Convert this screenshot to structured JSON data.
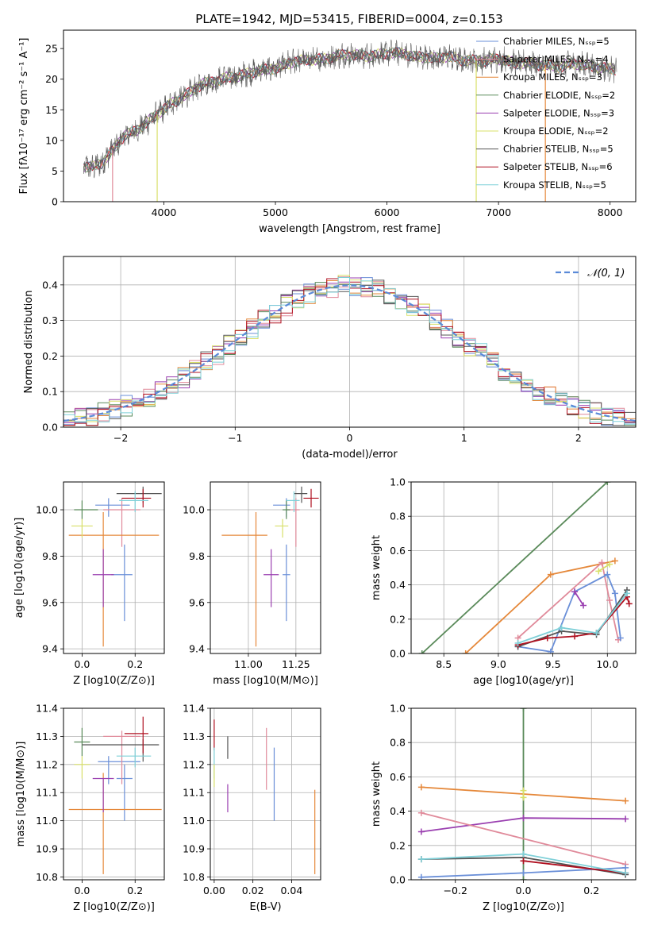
{
  "figure": {
    "title": "PLATE=1942, MJD=53415, FIBERID=0004, z=0.153"
  },
  "colors": {
    "c1": "#6a8fd8",
    "c2": "#e08a9a",
    "c3": "#e5883a",
    "c4": "#5a8a5a",
    "c5": "#9a3fb0",
    "c6": "#d8e06a",
    "c7": "#555555",
    "c8": "#b01020",
    "c9": "#7fd0d8"
  },
  "chart_data": [
    {
      "id": "spectrum",
      "type": "line",
      "xlabel": "wavelength [Angstrom, rest frame]",
      "ylabel": "Flux [fλ10⁻¹⁷ erg cm⁻² s⁻¹ A⁻¹]",
      "xlim": [
        3100,
        8230
      ],
      "ylim": [
        0,
        28
      ],
      "xticks": [
        4000,
        5000,
        6000,
        7000,
        8000
      ],
      "yticks": [
        0,
        5,
        10,
        15,
        20,
        25
      ],
      "legend_position": "top-right",
      "series": [
        {
          "name": "Chabrier MILES, N_SSP=5",
          "color": "#6a8fd8"
        },
        {
          "name": "Salpeter MILES, N_SSP=4",
          "color": "#e08a9a"
        },
        {
          "name": "Kroupa MILES, N_SSP=3",
          "color": "#e5883a"
        },
        {
          "name": "Chabrier ELODIE, N_SSP=2",
          "color": "#5a8a5a"
        },
        {
          "name": "Salpeter ELODIE, N_SSP=3",
          "color": "#9a3fb0"
        },
        {
          "name": "Kroupa ELODIE, N_SSP=2",
          "color": "#d8e06a"
        },
        {
          "name": "Chabrier STELIB, N_SSP=5",
          "color": "#555555"
        },
        {
          "name": "Salpeter STELIB, N_SSP=6",
          "color": "#b01020"
        },
        {
          "name": "Kroupa STELIB, N_SSP=5",
          "color": "#7fd0d8"
        }
      ],
      "x": [
        3280,
        3350,
        3450,
        3550,
        3650,
        3750,
        3850,
        3950,
        4050,
        4150,
        4250,
        4350,
        4450,
        4550,
        4650,
        4750,
        4850,
        4950,
        5050,
        5150,
        5250,
        5350,
        5450,
        5550,
        5650,
        5750,
        5850,
        5950,
        6050,
        6150,
        6250,
        6350,
        6450,
        6550,
        6650,
        6750,
        6850,
        6950,
        7050,
        7150,
        7250,
        7350,
        7450,
        7550,
        7650,
        7750,
        7850,
        7950,
        8050
      ],
      "y": [
        5.8,
        5.6,
        6.4,
        8.6,
        10.9,
        11.5,
        13.0,
        14.4,
        15.8,
        16.9,
        18.0,
        19.3,
        19.6,
        20.2,
        20.4,
        20.9,
        21.4,
        21.6,
        22.0,
        22.8,
        23.1,
        23.2,
        23.3,
        23.8,
        24.0,
        23.9,
        23.7,
        24.1,
        24.3,
        24.2,
        23.6,
        23.6,
        23.4,
        23.8,
        23.1,
        23.1,
        22.9,
        23.3,
        23.2,
        22.5,
        22.7,
        22.4,
        22.2,
        22.0,
        22.6,
        22.3,
        22.1,
        21.8,
        21.6
      ]
    },
    {
      "id": "residuals",
      "type": "line",
      "xlabel": "(data-model)/error",
      "ylabel": "Normed distribution",
      "xlim": [
        -2.5,
        2.5
      ],
      "ylim": [
        0,
        0.48
      ],
      "xticks": [
        -2,
        -1,
        0,
        1,
        2
      ],
      "yticks": [
        0.0,
        0.1,
        0.2,
        0.3,
        0.4
      ],
      "legend": [
        "𝒩(0, 1)"
      ],
      "legend_position": "top-right",
      "series": [
        {
          "name": "𝒩(0, 1)",
          "color": "#5a8ad8",
          "style": "dashed",
          "mean": 0,
          "sigma": 1
        }
      ]
    },
    {
      "id": "z-age",
      "type": "scatter",
      "xlabel": "Z [log10(Z/Z⊙)]",
      "ylabel": "age [log10(age/yr)]",
      "xlim": [
        -0.07,
        0.31
      ],
      "ylim": [
        9.38,
        10.12
      ],
      "xticks": [
        0.0,
        0.2
      ],
      "yticks": [
        9.4,
        9.6,
        9.8,
        10.0
      ],
      "points": [
        {
          "x": 0.1,
          "y": 10.02,
          "xerr": [
            0.05,
            0.08
          ],
          "yerr": [
            0.05,
            0.03
          ],
          "color": "#6a8fd8"
        },
        {
          "x": 0.16,
          "y": 9.72,
          "xerr": [
            0.05,
            0.03
          ],
          "yerr": [
            0.2,
            0.13
          ],
          "color": "#6a8fd8"
        },
        {
          "x": 0.15,
          "y": 10.0,
          "xerr": [
            0.07,
            0.07
          ],
          "yerr": [
            0.16,
            0.05
          ],
          "color": "#e08a9a"
        },
        {
          "x": 0.08,
          "y": 9.89,
          "xerr": [
            0.13,
            0.21
          ],
          "yerr": [
            0.48,
            0.1
          ],
          "color": "#e5883a"
        },
        {
          "x": 0.0,
          "y": 10.0,
          "xerr": [
            0.03,
            0.06
          ],
          "yerr": [
            0.04,
            0.04
          ],
          "color": "#5a8a5a"
        },
        {
          "x": 0.08,
          "y": 9.72,
          "xerr": [
            0.04,
            0.04
          ],
          "yerr": [
            0.14,
            0.11
          ],
          "color": "#9a3fb0"
        },
        {
          "x": 0.0,
          "y": 9.93,
          "xerr": [
            0.04,
            0.04
          ],
          "yerr": [
            0.05,
            0.03
          ],
          "color": "#d8e06a"
        },
        {
          "x": 0.23,
          "y": 10.07,
          "xerr": [
            0.1,
            0.07
          ],
          "yerr": [
            0.04,
            0.03
          ],
          "color": "#555555"
        },
        {
          "x": 0.23,
          "y": 10.05,
          "xerr": [
            0.08,
            0.03
          ],
          "yerr": [
            0.04,
            0.04
          ],
          "color": "#b01020"
        },
        {
          "x": 0.2,
          "y": 10.04,
          "xerr": [
            0.06,
            0.05
          ],
          "yerr": [
            0.05,
            0.04
          ],
          "color": "#7fd0d8"
        }
      ]
    },
    {
      "id": "mass-age",
      "type": "scatter",
      "xlabel": "mass [log10(M/M⊙)]",
      "ylabel": "",
      "xlim": [
        10.8,
        11.38
      ],
      "ylim": [
        9.38,
        10.12
      ],
      "xticks": [
        11.0,
        11.25
      ],
      "yticks": [
        9.4,
        9.6,
        9.8,
        10.0
      ],
      "points": [
        {
          "x": 11.2,
          "y": 10.02,
          "xerr": [
            0.07,
            0.02
          ],
          "yerr": [
            0.05,
            0.03
          ],
          "color": "#6a8fd8"
        },
        {
          "x": 11.2,
          "y": 9.72,
          "xerr": [
            0.02,
            0.02
          ],
          "yerr": [
            0.2,
            0.13
          ],
          "color": "#6a8fd8"
        },
        {
          "x": 11.25,
          "y": 10.0,
          "xerr": [
            0.05,
            0.02
          ],
          "yerr": [
            0.16,
            0.05
          ],
          "color": "#e08a9a"
        },
        {
          "x": 11.04,
          "y": 9.89,
          "xerr": [
            0.18,
            0.06
          ],
          "yerr": [
            0.48,
            0.1
          ],
          "color": "#e5883a"
        },
        {
          "x": 11.2,
          "y": 10.0,
          "xerr": [
            0.02,
            0.02
          ],
          "yerr": [
            0.04,
            0.04
          ],
          "color": "#5a8a5a"
        },
        {
          "x": 11.12,
          "y": 9.72,
          "xerr": [
            0.04,
            0.04
          ],
          "yerr": [
            0.14,
            0.11
          ],
          "color": "#9a3fb0"
        },
        {
          "x": 11.18,
          "y": 9.93,
          "xerr": [
            0.04,
            0.03
          ],
          "yerr": [
            0.05,
            0.03
          ],
          "color": "#d8e06a"
        },
        {
          "x": 11.28,
          "y": 10.07,
          "xerr": [
            0.04,
            0.03
          ],
          "yerr": [
            0.04,
            0.03
          ],
          "color": "#555555"
        },
        {
          "x": 11.33,
          "y": 10.05,
          "xerr": [
            0.04,
            0.04
          ],
          "yerr": [
            0.04,
            0.04
          ],
          "color": "#b01020"
        },
        {
          "x": 11.24,
          "y": 10.04,
          "xerr": [
            0.04,
            0.03
          ],
          "yerr": [
            0.05,
            0.04
          ],
          "color": "#7fd0d8"
        }
      ]
    },
    {
      "id": "age-weight",
      "type": "line",
      "xlabel": "age [log10(age/yr)]",
      "ylabel": "mass weight",
      "xlim": [
        8.2,
        10.26
      ],
      "ylim": [
        0,
        1.0
      ],
      "xticks": [
        8.5,
        9.0,
        9.5,
        10.0
      ],
      "yticks": [
        0.0,
        0.2,
        0.4,
        0.6,
        0.8,
        1.0
      ],
      "series": [
        {
          "color": "#5a8a5a",
          "x": [
            8.3,
            10.0
          ],
          "y": [
            0.0,
            1.0
          ]
        },
        {
          "color": "#e5883a",
          "x": [
            8.7,
            9.48,
            10.07
          ],
          "y": [
            0.0,
            0.46,
            0.54
          ]
        },
        {
          "color": "#e08a9a",
          "x": [
            9.18,
            9.95,
            10.02,
            10.1
          ],
          "y": [
            0.09,
            0.53,
            0.31,
            0.08
          ]
        },
        {
          "color": "#6a8fd8",
          "x": [
            9.18,
            9.48,
            9.7,
            10.0,
            10.07,
            10.12
          ],
          "y": [
            0.04,
            0.01,
            0.36,
            0.46,
            0.35,
            0.09
          ]
        },
        {
          "color": "#9a3fb0",
          "x": [
            9.7,
            9.78
          ],
          "y": [
            0.36,
            0.28
          ]
        },
        {
          "color": "#d8e06a",
          "x": [
            9.92,
            10.02
          ],
          "y": [
            0.48,
            0.52
          ]
        },
        {
          "color": "#555555",
          "x": [
            9.18,
            9.58,
            9.9,
            10.18
          ],
          "y": [
            0.04,
            0.13,
            0.11,
            0.37
          ]
        },
        {
          "color": "#b01020",
          "x": [
            9.18,
            9.45,
            9.7,
            9.9,
            10.18,
            10.2
          ],
          "y": [
            0.05,
            0.09,
            0.1,
            0.12,
            0.33,
            0.29
          ]
        },
        {
          "color": "#7fd0d8",
          "x": [
            9.18,
            9.58,
            9.9,
            10.18
          ],
          "y": [
            0.06,
            0.15,
            0.12,
            0.35
          ]
        }
      ]
    },
    {
      "id": "z-mass",
      "type": "scatter",
      "xlabel": "Z [log10(Z/Z⊙)]",
      "ylabel": "mass [log10(M/M⊙)]",
      "xlim": [
        -0.07,
        0.31
      ],
      "ylim": [
        10.79,
        11.4
      ],
      "xticks": [
        0.0,
        0.2
      ],
      "yticks": [
        10.8,
        10.9,
        11.0,
        11.1,
        11.2,
        11.3,
        11.4
      ],
      "points": [
        {
          "x": 0.1,
          "y": 11.21,
          "xerr": [
            0.04,
            0.12
          ],
          "yerr": [
            0.08,
            0.02
          ],
          "color": "#6a8fd8"
        },
        {
          "x": 0.16,
          "y": 11.15,
          "xerr": [
            0.03,
            0.03
          ],
          "yerr": [
            0.15,
            0.05
          ],
          "color": "#6a8fd8"
        },
        {
          "x": 0.15,
          "y": 11.3,
          "xerr": [
            0.07,
            0.07
          ],
          "yerr": [
            0.17,
            0.02
          ],
          "color": "#e08a9a"
        },
        {
          "x": 0.08,
          "y": 11.04,
          "xerr": [
            0.13,
            0.22
          ],
          "yerr": [
            0.23,
            0.13
          ],
          "color": "#e5883a"
        },
        {
          "x": 0.0,
          "y": 11.28,
          "xerr": [
            0.03,
            0.03
          ],
          "yerr": [
            0.05,
            0.05
          ],
          "color": "#5a8a5a"
        },
        {
          "x": 0.08,
          "y": 11.15,
          "xerr": [
            0.04,
            0.04
          ],
          "yerr": [
            0.12,
            0.0
          ],
          "color": "#9a3fb0"
        },
        {
          "x": 0.0,
          "y": 11.2,
          "xerr": [
            0.03,
            0.03
          ],
          "yerr": [
            0.05,
            0.03
          ],
          "color": "#d8e06a"
        },
        {
          "x": 0.23,
          "y": 11.27,
          "xerr": [
            0.23,
            0.06
          ],
          "yerr": [
            0.06,
            0.02
          ],
          "color": "#555555"
        },
        {
          "x": 0.23,
          "y": 11.31,
          "xerr": [
            0.07,
            0.02
          ],
          "yerr": [
            0.07,
            0.06
          ],
          "color": "#b01020"
        },
        {
          "x": 0.2,
          "y": 11.23,
          "xerr": [
            0.07,
            0.06
          ],
          "yerr": [
            0.04,
            0.03
          ],
          "color": "#7fd0d8"
        }
      ]
    },
    {
      "id": "ebv-mass",
      "type": "scatter",
      "xlabel": "E(B-V)",
      "ylabel": "",
      "xlim": [
        -0.002,
        0.055
      ],
      "ylim": [
        10.79,
        11.4
      ],
      "xticks": [
        0.0,
        0.02,
        0.04
      ],
      "yticks": [
        10.8,
        10.9,
        11.0,
        11.1,
        11.2,
        11.3,
        11.4
      ],
      "points": [
        {
          "x": 0.0,
          "y": 11.3,
          "yerr": [
            0.05,
            0.06
          ],
          "color": "#b01020"
        },
        {
          "x": 0.0,
          "y": 11.21,
          "yerr": [
            0.06,
            0.05
          ],
          "color": "#7fd0d8"
        },
        {
          "x": 0.0,
          "y": 11.15,
          "yerr": [
            0.03,
            0.05
          ],
          "color": "#d8e06a"
        },
        {
          "x": 0.007,
          "y": 11.26,
          "yerr": [
            0.04,
            0.04
          ],
          "color": "#555555"
        },
        {
          "x": 0.007,
          "y": 11.1,
          "yerr": [
            0.07,
            0.03
          ],
          "color": "#9a3fb0"
        },
        {
          "x": 0.027,
          "y": 11.2,
          "yerr": [
            0.09,
            0.13
          ],
          "color": "#e08a9a"
        },
        {
          "x": 0.031,
          "y": 11.11,
          "yerr": [
            0.11,
            0.15
          ],
          "color": "#6a8fd8"
        },
        {
          "x": 0.052,
          "y": 10.96,
          "yerr": [
            0.15,
            0.15
          ],
          "color": "#e5883a"
        }
      ]
    },
    {
      "id": "z-weight",
      "type": "line",
      "xlabel": "Z [log10(Z/Z⊙)]",
      "ylabel": "mass weight",
      "xlim": [
        -0.33,
        0.33
      ],
      "ylim": [
        0,
        1.0
      ],
      "xticks": [
        -0.2,
        0.0,
        0.2
      ],
      "yticks": [
        0.0,
        0.2,
        0.4,
        0.6,
        0.8,
        1.0
      ],
      "series": [
        {
          "color": "#5a8a5a",
          "x": [
            0.0,
            0.0
          ],
          "y": [
            0.0,
            1.0
          ]
        },
        {
          "color": "#e5883a",
          "x": [
            -0.3,
            0.3
          ],
          "y": [
            0.54,
            0.46
          ]
        },
        {
          "color": "#d8e06a",
          "x": [
            0.0,
            0.0
          ],
          "y": [
            0.48,
            0.52
          ]
        },
        {
          "color": "#9a3fb0",
          "x": [
            -0.3,
            0.0,
            0.3
          ],
          "y": [
            0.28,
            0.36,
            0.355
          ]
        },
        {
          "color": "#e08a9a",
          "x": [
            -0.3,
            0.3
          ],
          "y": [
            0.39,
            0.09
          ]
        },
        {
          "color": "#6a8fd8",
          "x": [
            -0.3,
            0.0,
            0.3
          ],
          "y": [
            0.015,
            0.04,
            0.07
          ]
        },
        {
          "color": "#555555",
          "x": [
            -0.3,
            0.0,
            0.3
          ],
          "y": [
            0.12,
            0.13,
            0.03
          ]
        },
        {
          "color": "#b01020",
          "x": [
            0.0,
            0.3
          ],
          "y": [
            0.11,
            0.04
          ]
        },
        {
          "color": "#7fd0d8",
          "x": [
            -0.3,
            0.0,
            0.3
          ],
          "y": [
            0.12,
            0.15,
            0.04
          ]
        }
      ]
    }
  ]
}
